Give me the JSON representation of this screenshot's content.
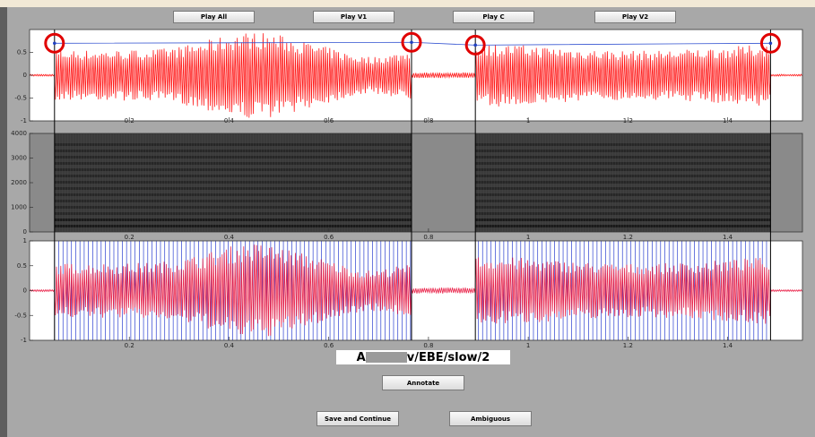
{
  "buttons": {
    "play_all": "Play All",
    "play_v1": "Play V1",
    "play_c": "Play C",
    "play_v2": "Play V2",
    "annotate": "Annotate",
    "save_continue": "Save and Continue",
    "ambiguous": "Ambiguous"
  },
  "file_label": {
    "prefix": "A",
    "suffix": "v/EBE/slow/2"
  },
  "boundaries": [
    0.05,
    0.766,
    0.894,
    1.486
  ],
  "plots": {
    "waveform": {
      "xlim": [
        0,
        1.55
      ],
      "ylim": [
        -1,
        1
      ],
      "xticks": [
        0.2,
        0.4,
        0.6,
        0.8,
        1,
        1.2,
        1.4
      ],
      "yticks": [
        -1,
        -0.5,
        0,
        0.5
      ]
    },
    "spectrogram": {
      "xlim": [
        0,
        1.55
      ],
      "ylim": [
        0,
        4000
      ],
      "xticks": [
        0.2,
        0.4,
        0.6,
        0.8,
        1,
        1.2,
        1.4
      ],
      "yticks": [
        0,
        1000,
        2000,
        3000,
        4000
      ]
    },
    "pitch_marks": {
      "xlim": [
        0,
        1.55
      ],
      "ylim": [
        -1,
        1
      ],
      "xticks": [
        0.2,
        0.4,
        0.6,
        0.8,
        1,
        1.2,
        1.4
      ],
      "yticks": [
        -1,
        -0.5,
        0,
        0.5,
        1
      ]
    }
  }
}
